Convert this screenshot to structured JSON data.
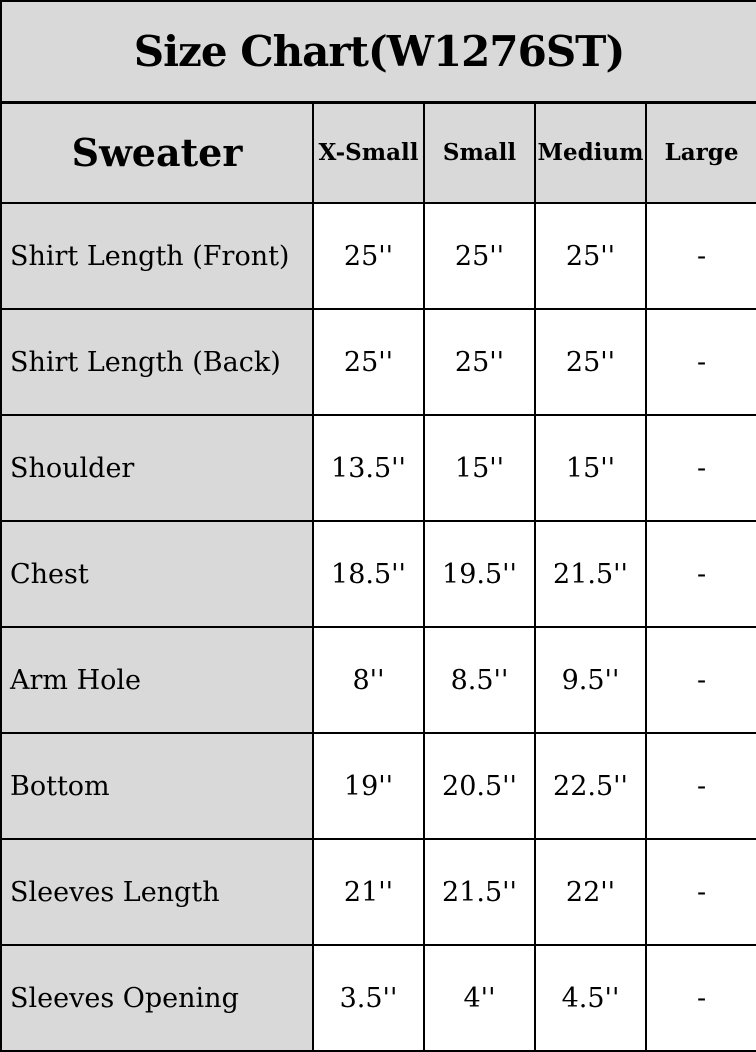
{
  "page": {
    "title_label": "Size Chart(W1276ST)"
  },
  "size_chart": {
    "product_label": "Sweater",
    "size_headers": [
      "X-Small",
      "Small",
      "Medium",
      "Large"
    ],
    "measurements": [
      {
        "label": "Shirt Length (Front)",
        "values": [
          "25''",
          "25''",
          "25''",
          "-"
        ]
      },
      {
        "label": "Shirt Length (Back)",
        "values": [
          "25''",
          "25''",
          "25''",
          "-"
        ]
      },
      {
        "label": "Shoulder",
        "values": [
          "13.5''",
          "15''",
          "15''",
          "-"
        ]
      },
      {
        "label": "Chest",
        "values": [
          "18.5''",
          "19.5''",
          "21.5''",
          "-"
        ]
      },
      {
        "label": "Arm Hole",
        "values": [
          "8''",
          "8.5''",
          "9.5''",
          "-"
        ]
      },
      {
        "label": "Bottom",
        "values": [
          "19''",
          "20.5''",
          "22.5''",
          "-"
        ]
      },
      {
        "label": "Sleeves Length",
        "values": [
          "21''",
          "21.5''",
          "22''",
          "-"
        ]
      },
      {
        "label": "Sleeves Opening",
        "values": [
          "3.5''",
          "4''",
          "4.5''",
          "-"
        ]
      }
    ]
  },
  "colors": {
    "shaded_cell_bg": "#d9d9d9",
    "value_cell_bg": "#ffffff",
    "border": "#000000",
    "text": "#000000"
  }
}
